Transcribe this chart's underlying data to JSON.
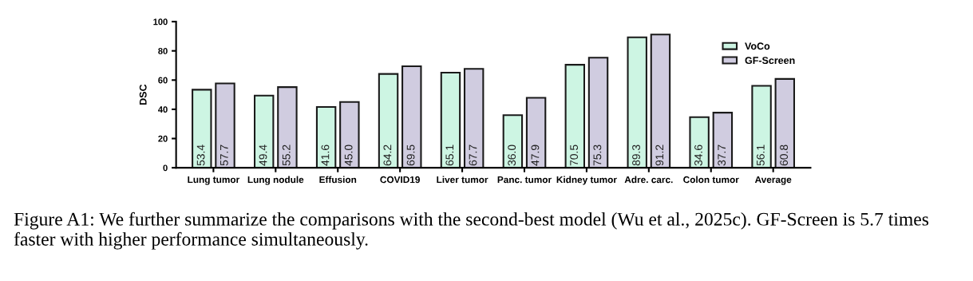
{
  "chart_data": {
    "type": "bar",
    "ylabel": "DSC",
    "categories": [
      "Lung tumor",
      "Lung nodule",
      "Effusion",
      "COVID19",
      "Liver tumor",
      "Panc. tumor",
      "Kidney tumor",
      "Adre. carc.",
      "Colon tumor",
      "Average"
    ],
    "series": [
      {
        "name": "VoCo",
        "color": "#cdf5e3",
        "values": [
          53.4,
          49.4,
          41.6,
          64.2,
          65.1,
          36.0,
          70.5,
          89.3,
          34.6,
          56.1
        ],
        "value_labels": [
          "53.4",
          "49.4",
          "41.6",
          "64.2",
          "65.1",
          "36.0",
          "70.5",
          "89.3",
          "34.6",
          "56.1"
        ]
      },
      {
        "name": "GF-Screen",
        "color": "#d0cce0",
        "values": [
          57.7,
          55.2,
          45.0,
          69.5,
          67.7,
          47.9,
          75.3,
          91.2,
          37.7,
          60.8
        ],
        "value_labels": [
          "57.7",
          "55.2",
          "45.0",
          "69.5",
          "67.7",
          "47.9",
          "75.3",
          "91.2",
          "37.7",
          "60.8"
        ]
      }
    ],
    "ylim": [
      0,
      100
    ],
    "yticks": [
      0,
      20,
      40,
      60,
      80,
      100
    ],
    "grid": false,
    "legend": "top right",
    "annotations": [
      "Figure A1: We further summarize the comparisons with the second-best model (Wu et al., 2025c). GF-Screen is 5.7 times faster with higher performance simultaneously."
    ]
  }
}
